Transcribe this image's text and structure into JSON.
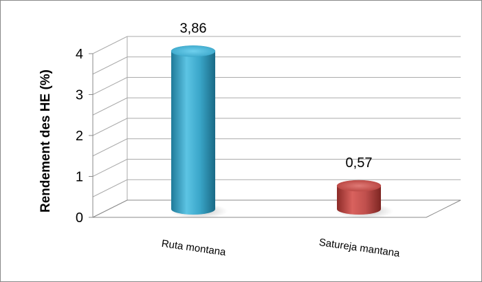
{
  "chart_data": {
    "type": "bar",
    "style": "3d-cylinder",
    "categories": [
      "Ruta montana",
      "Satureja mantana"
    ],
    "values": [
      3.86,
      0.57
    ],
    "data_labels": [
      "3,86",
      "0,57"
    ],
    "colors": [
      "#3aa6c9",
      "#c0504d"
    ],
    "ylabel": "Rendement des HE (%)",
    "xlabel": "",
    "ylim": [
      0,
      4
    ],
    "y_ticks": [
      0,
      1,
      2,
      3,
      4
    ],
    "grid": true,
    "legend": "none"
  }
}
